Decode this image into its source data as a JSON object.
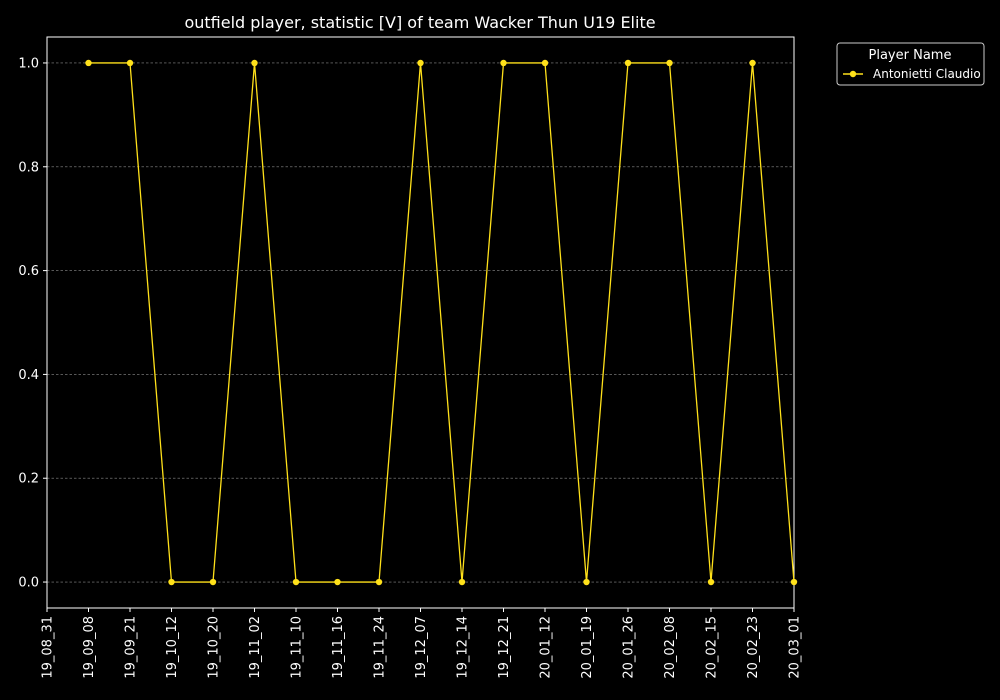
{
  "chart_data": {
    "type": "line",
    "title": "outfield player, statistic [V] of team Wacker Thun U19 Elite",
    "xlabel": "",
    "ylabel": "",
    "x_ticks": [
      "19_08_31",
      "19_09_08",
      "19_09_21",
      "19_10_12",
      "19_10_20",
      "19_11_02",
      "19_11_10",
      "19_11_16",
      "19_11_24",
      "19_12_07",
      "19_12_14",
      "19_12_21",
      "20_01_12",
      "20_01_19",
      "20_01_26",
      "20_02_08",
      "20_02_15",
      "20_02_23",
      "20_03_01"
    ],
    "y_ticks": [
      "0.0",
      "0.2",
      "0.4",
      "0.6",
      "0.8",
      "1.0"
    ],
    "ylim": [
      -0.05,
      1.05
    ],
    "grid": "horizontal dashed",
    "legend": {
      "title": "Player Name",
      "position": "outside top-right"
    },
    "series": [
      {
        "name": "Antonietti Claudio",
        "color": "#ffe11a",
        "x": [
          "19_09_08",
          "19_09_21",
          "19_10_12",
          "19_10_20",
          "19_11_02",
          "19_11_10",
          "19_11_16",
          "19_11_24",
          "19_12_07",
          "19_12_14",
          "19_12_21",
          "20_01_12",
          "20_01_19",
          "20_01_26",
          "20_02_08",
          "20_02_15",
          "20_02_23",
          "20_03_01"
        ],
        "values": [
          1,
          1,
          0,
          0,
          1,
          0,
          0,
          0,
          1,
          0,
          1,
          1,
          0,
          1,
          1,
          0,
          1,
          0
        ]
      }
    ]
  }
}
